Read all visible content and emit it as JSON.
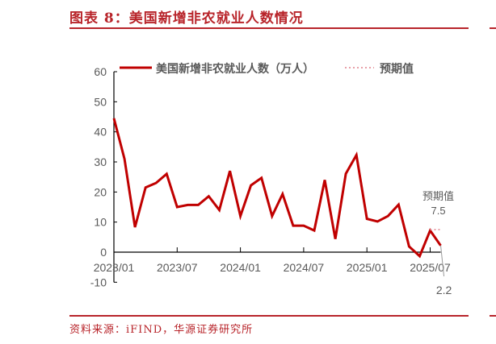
{
  "title": "图表 8：美国新增非农就业人数情况",
  "source": "资料来源：iFIND，华源证券研究所",
  "colors": {
    "accent": "#b8242a",
    "series": "#c00000",
    "expected": "#e8a0a8",
    "axis_text": "#595959"
  },
  "chart_data": {
    "type": "line",
    "title": "",
    "xlabel": "",
    "ylabel": "",
    "ylim": [
      -10,
      60
    ],
    "yticks": [
      -10,
      0,
      10,
      20,
      30,
      40,
      50,
      60
    ],
    "xtick_labels": [
      "2023/01",
      "2023/07",
      "2024/01",
      "2024/07",
      "2025/01",
      "2025/07"
    ],
    "grid": false,
    "legend_position": "top",
    "x": [
      "2023/01",
      "2023/02",
      "2023/03",
      "2023/04",
      "2023/05",
      "2023/06",
      "2023/07",
      "2023/08",
      "2023/09",
      "2023/10",
      "2023/11",
      "2023/12",
      "2024/01",
      "2024/02",
      "2024/03",
      "2024/04",
      "2024/05",
      "2024/06",
      "2024/07",
      "2024/08",
      "2024/09",
      "2024/10",
      "2024/11",
      "2024/12",
      "2025/01",
      "2025/02",
      "2025/03",
      "2025/04",
      "2025/05",
      "2025/06",
      "2025/07",
      "2025/08"
    ],
    "series": [
      {
        "name": "美国新增非农就业人数（万人）",
        "values": [
          44.5,
          31,
          8.3,
          21.5,
          23,
          26,
          15,
          15.7,
          15.7,
          18.6,
          14,
          27,
          12,
          22.2,
          24.7,
          12,
          19.3,
          8.8,
          8.8,
          7.2,
          24,
          4.4,
          26.1,
          32.3,
          11.1,
          10.2,
          12,
          15.8,
          1.9,
          -1.3,
          7.2,
          2.2
        ]
      },
      {
        "name": "预期值",
        "x": [
          "2025/07",
          "2025/08"
        ],
        "values": [
          7.5,
          7.5
        ]
      }
    ],
    "annotations": [
      {
        "label": "预期值",
        "value": "7.5"
      },
      {
        "value": "2.2"
      }
    ]
  }
}
